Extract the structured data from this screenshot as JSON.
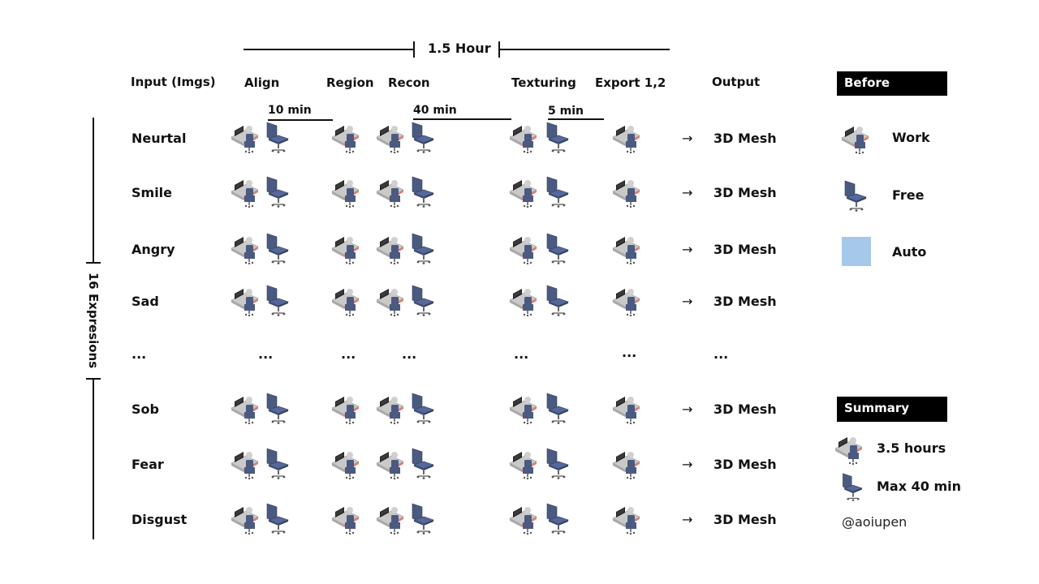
{
  "timeline": {
    "label": "1.5 Hour"
  },
  "headers": {
    "input": "Input (Imgs)",
    "align": "Align",
    "region": "Region",
    "recon": "Recon",
    "texturing": "Texturing",
    "export": "Export 1,2",
    "output": "Output"
  },
  "durations": {
    "align": "10 min",
    "recon": "40 min",
    "texturing": "5 min"
  },
  "side_label": "16 Expresions",
  "rows": [
    {
      "label": "Neurtal",
      "output": "3D Mesh"
    },
    {
      "label": "Smile",
      "output": "3D Mesh"
    },
    {
      "label": "Angry",
      "output": "3D Mesh"
    },
    {
      "label": "Sad",
      "output": "3D Mesh"
    },
    {
      "label": "Sob",
      "output": "3D Mesh"
    },
    {
      "label": "Fear",
      "output": "3D Mesh"
    },
    {
      "label": "Disgust",
      "output": "3D Mesh"
    }
  ],
  "ellipsis": "...",
  "legend": {
    "title": "Before",
    "work": "Work",
    "free": "Free",
    "auto": "Auto",
    "auto_color": "#a6c8ea"
  },
  "summary": {
    "title": "Summary",
    "work_time": "3.5 hours",
    "free_time": "Max 40 min",
    "handle": "@aoiupen"
  },
  "icons": {
    "work": "desk-worker-icon",
    "free": "empty-chair-icon"
  },
  "colors": {
    "chair": "#4a5a80",
    "desk": "#c9c9c9",
    "desk_edge": "#e08070"
  }
}
